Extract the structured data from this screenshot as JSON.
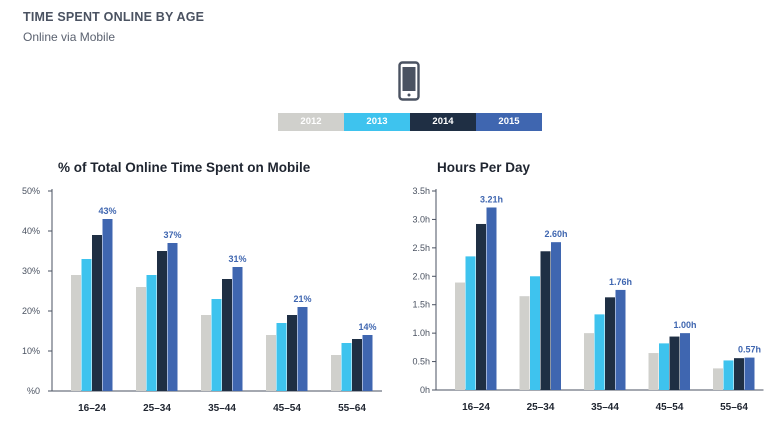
{
  "header": {
    "title": "TIME SPENT ONLINE BY AGE",
    "subtitle": "Online via Mobile",
    "icon": "mobile-phone-icon"
  },
  "legend": [
    {
      "label": "2012",
      "color": "#d0d0cc"
    },
    {
      "label": "2013",
      "color": "#3ec3ee"
    },
    {
      "label": "2014",
      "color": "#1f2f44"
    },
    {
      "label": "2015",
      "color": "#3f66b0"
    }
  ],
  "chart_data": [
    {
      "type": "bar",
      "title": "% of Total Online Time Spent on Mobile",
      "categories": [
        "16–24",
        "25–34",
        "35–44",
        "45–54",
        "55–64"
      ],
      "series": [
        {
          "name": "2012",
          "values": [
            29,
            26,
            19,
            14,
            9
          ]
        },
        {
          "name": "2013",
          "values": [
            33,
            29,
            23,
            17,
            12
          ]
        },
        {
          "name": "2014",
          "values": [
            39,
            35,
            28,
            19,
            13
          ]
        },
        {
          "name": "2015",
          "values": [
            43,
            37,
            31,
            21,
            14
          ]
        }
      ],
      "data_labels": [
        "43%",
        "37%",
        "31%",
        "21%",
        "14%"
      ],
      "yticks": [
        "%0",
        "10%",
        "20%",
        "30%",
        "40%",
        "50%"
      ],
      "ylim": [
        0,
        50
      ],
      "grid": false
    },
    {
      "type": "bar",
      "title": "Hours Per Day",
      "categories": [
        "16–24",
        "25–34",
        "35–44",
        "45–54",
        "55–64"
      ],
      "series": [
        {
          "name": "2012",
          "values": [
            1.89,
            1.65,
            1.0,
            0.65,
            0.38
          ]
        },
        {
          "name": "2013",
          "values": [
            2.35,
            2.0,
            1.33,
            0.82,
            0.52
          ]
        },
        {
          "name": "2014",
          "values": [
            2.92,
            2.44,
            1.63,
            0.94,
            0.56
          ]
        },
        {
          "name": "2015",
          "values": [
            3.21,
            2.6,
            1.76,
            1.0,
            0.57
          ]
        }
      ],
      "data_labels": [
        "3.21h",
        "2.60h",
        "1.76h",
        "1.00h",
        "0.57h"
      ],
      "yticks": [
        "0h",
        "0.5h",
        "1.0h",
        "1.5h",
        "2.0h",
        "2.5h",
        "3.0h",
        "3.5h"
      ],
      "ylim": [
        0,
        3.5
      ],
      "grid": false
    }
  ]
}
